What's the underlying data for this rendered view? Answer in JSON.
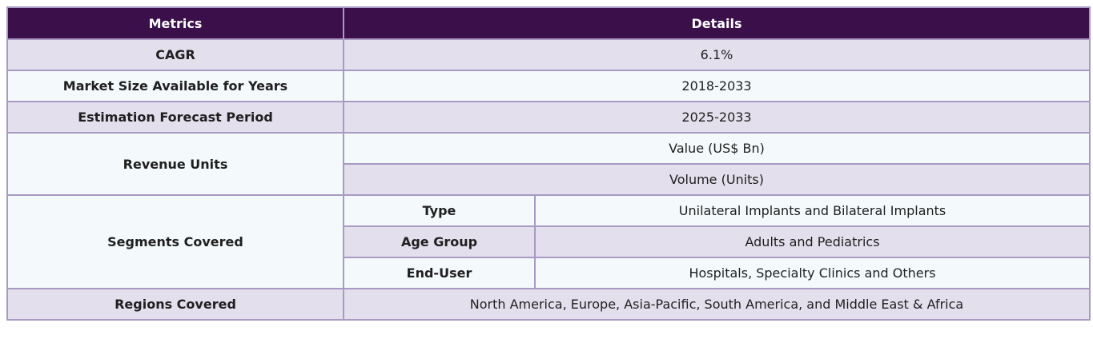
{
  "header": {
    "metrics": "Metrics",
    "details": "Details"
  },
  "rows": {
    "cagr": {
      "label": "CAGR",
      "value": "6.1%"
    },
    "market_size": {
      "label": "Market Size Available for Years",
      "value": "2018-2033"
    },
    "forecast": {
      "label": "Estimation Forecast Period",
      "value": "2025-2033"
    },
    "revenue_units": {
      "label": "Revenue Units",
      "values": [
        "Value (US$ Bn)",
        "Volume (Units)"
      ]
    },
    "segments": {
      "label": "Segments Covered",
      "items": [
        {
          "name": "Type",
          "value": "Unilateral Implants and Bilateral Implants"
        },
        {
          "name": "Age Group",
          "value": "Adults and Pediatrics"
        },
        {
          "name": "End-User",
          "value": "Hospitals, Specialty Clinics and Others"
        }
      ]
    },
    "regions": {
      "label": "Regions Covered",
      "value": "North America, Europe, Asia-Pacific, South America, and Middle East & Africa"
    }
  },
  "colors": {
    "header_bg": "#3a0f4a",
    "row_lavender": "#e3dfec",
    "row_light": "#f4f9fb",
    "border": "#a99ac3"
  }
}
